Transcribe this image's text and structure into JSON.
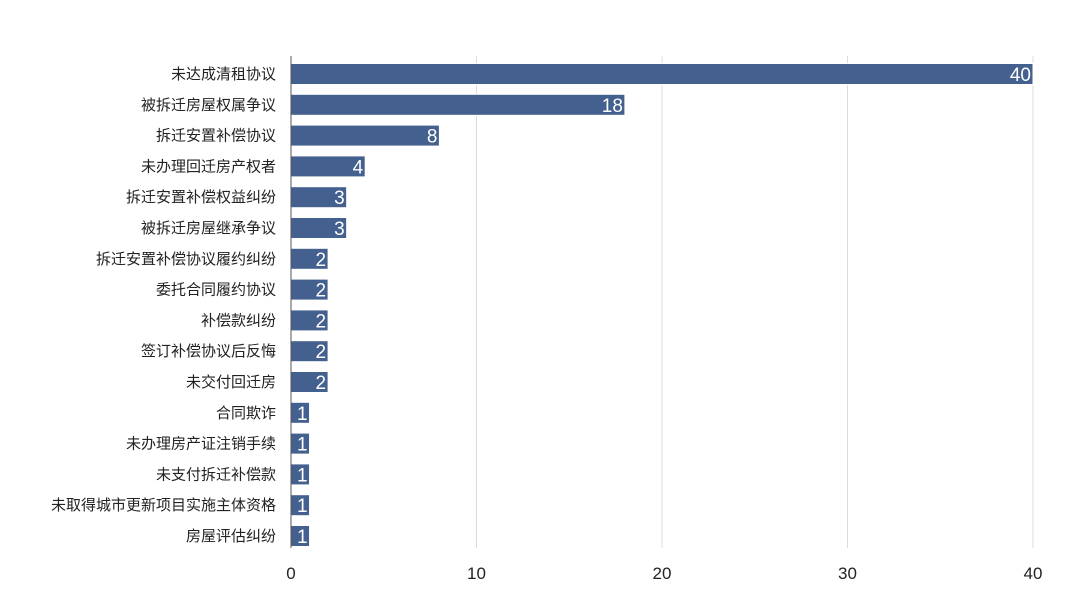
{
  "chart_data": {
    "type": "bar",
    "orientation": "horizontal",
    "categories": [
      "未达成清租协议",
      "被拆迁房屋权属争议",
      "拆迁安置补偿协议",
      "未办理回迁房产权者",
      "拆迁安置补偿权益纠纷",
      "被拆迁房屋继承争议",
      "拆迁安置补偿协议履约纠纷",
      "委托合同履约协议",
      "补偿款纠纷",
      "签订补偿协议后反悔",
      "未交付回迁房",
      "合同欺诈",
      "未办理房产证注销手续",
      "未支付拆迁补偿款",
      "未取得城市更新项目实施主体资格",
      "房屋评估纠纷"
    ],
    "values": [
      40,
      18,
      8,
      4,
      3,
      3,
      2,
      2,
      2,
      2,
      2,
      1,
      1,
      1,
      1,
      1
    ],
    "xlim": [
      0,
      40
    ],
    "xticks": [
      0,
      10,
      20,
      30,
      40
    ],
    "grid": "vertical",
    "bar_color": "#44608f",
    "label_color": "#ffffff"
  }
}
